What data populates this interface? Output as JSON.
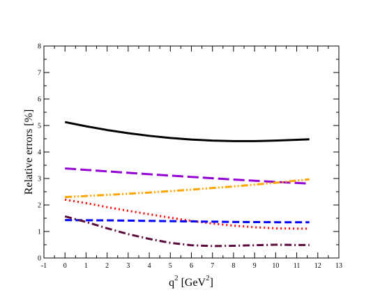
{
  "chart_data": {
    "type": "line",
    "xlabel_base": "q",
    "xlabel_sup": "2",
    "xlabel_unit_open": " [GeV",
    "xlabel_unit_sup": "2",
    "xlabel_unit_close": "]",
    "ylabel": "Relative errors [%]",
    "xlim": [
      -1,
      13
    ],
    "ylim": [
      0,
      8
    ],
    "xticks": [
      -1,
      0,
      1,
      2,
      3,
      4,
      5,
      6,
      7,
      8,
      9,
      10,
      11,
      12,
      13
    ],
    "yticks": [
      0,
      1,
      2,
      3,
      4,
      5,
      6,
      7,
      8
    ],
    "grid": false,
    "series": [
      {
        "color": "#000000",
        "dash": "solid",
        "x": [
          0,
          1,
          2,
          3,
          4,
          5,
          6,
          7,
          8,
          9,
          10,
          11,
          11.6
        ],
        "y": [
          5.13,
          4.97,
          4.83,
          4.71,
          4.61,
          4.53,
          4.47,
          4.43,
          4.41,
          4.41,
          4.43,
          4.46,
          4.48
        ]
      },
      {
        "color": "#9400d3",
        "dash": "long-dash",
        "x": [
          0,
          2,
          4,
          6,
          8,
          10,
          11.6
        ],
        "y": [
          3.38,
          3.27,
          3.16,
          3.06,
          2.96,
          2.87,
          2.81
        ]
      },
      {
        "color": "#ffa500",
        "dash": "dash-dot-dot",
        "x": [
          0,
          2,
          4,
          6,
          8,
          10,
          11.6
        ],
        "y": [
          2.3,
          2.38,
          2.47,
          2.58,
          2.7,
          2.84,
          2.97
        ]
      },
      {
        "color": "#ff0000",
        "dash": "dotted",
        "x": [
          0,
          1,
          2,
          3,
          4,
          5,
          6,
          7,
          8,
          9,
          10,
          11,
          11.6
        ],
        "y": [
          2.2,
          2.07,
          1.92,
          1.78,
          1.65,
          1.52,
          1.4,
          1.3,
          1.22,
          1.16,
          1.12,
          1.11,
          1.11
        ]
      },
      {
        "color": "#0000ff",
        "dash": "dashed",
        "x": [
          0,
          2,
          4,
          6,
          8,
          10,
          11.6
        ],
        "y": [
          1.43,
          1.42,
          1.4,
          1.38,
          1.36,
          1.35,
          1.35
        ]
      },
      {
        "color": "#5a0a3c",
        "dash": "dash-dot",
        "x": [
          0,
          1,
          2,
          3,
          4,
          5,
          6,
          7,
          8,
          9,
          10,
          11,
          11.6
        ],
        "y": [
          1.57,
          1.36,
          1.12,
          0.9,
          0.72,
          0.57,
          0.48,
          0.45,
          0.46,
          0.48,
          0.5,
          0.49,
          0.49
        ]
      }
    ]
  }
}
